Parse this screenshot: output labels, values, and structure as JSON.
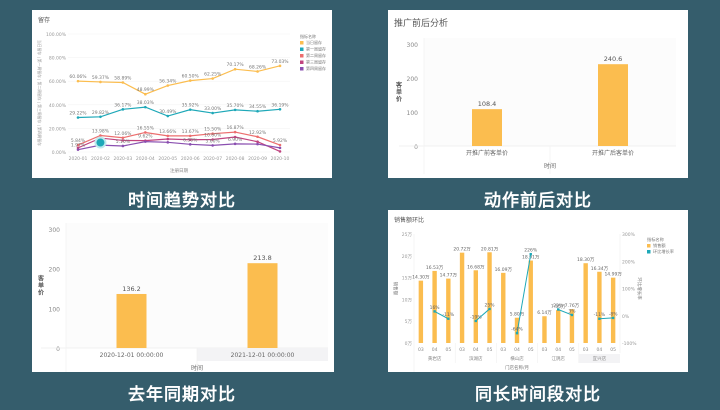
{
  "captions": {
    "top_left": "时间趋势对比",
    "top_right": "动作前后对比",
    "bottom_left": "去年同期对比",
    "bottom_right": "同长时间段对比"
  },
  "colors": {
    "background": "#355d6c",
    "orange": "#fbbd4f",
    "teal": "#1ea8b8",
    "red": "#ec6e6e",
    "magenta": "#c0437f",
    "purple": "#8a4fb0"
  },
  "chart_data": [
    {
      "type": "line",
      "title": "留存",
      "xlabel": "注册日期",
      "ylabel": "当日留存 | 第一周留存 | 第二周留存 | 第三周留存 | 第四周留存",
      "ylim": [
        0,
        100
      ],
      "yticks": [
        "0.00%",
        "20.00%",
        "40.00%",
        "60.00%",
        "80.00%",
        "100.00%"
      ],
      "legend_title": "指标名称",
      "legend_position": "right",
      "categories": [
        "2020-01",
        "2020-02",
        "2020-03",
        "2020-04",
        "2020-05",
        "2020-06",
        "2020-07",
        "2020-08",
        "2020-09",
        "2020-10"
      ],
      "series": [
        {
          "name": "当日留存",
          "color": "#fbbd4f",
          "values": [
            60.06,
            59.37,
            58.89,
            48.99,
            56.34,
            60.5,
            62.25,
            70.17,
            68.26,
            73.03
          ],
          "labels": [
            "60.06%",
            "59.37%",
            "58.89%",
            "48.99%",
            "56.34%",
            "60.50%",
            "62.25%",
            "70.17%",
            "68.26%",
            "73.03%"
          ]
        },
        {
          "name": "第一周留存",
          "color": "#1ea8b8",
          "values": [
            29.22,
            29.82,
            36.17,
            38.03,
            30.49,
            35.92,
            33.0,
            35.7,
            34.55,
            36.19
          ],
          "labels": [
            "29.22%",
            "29.82%",
            "36.17%",
            "38.03%",
            "30.49%",
            "35.92%",
            "33.00%",
            "35.70%",
            "34.55%",
            "36.19%"
          ]
        },
        {
          "name": "第二周留存",
          "color": "#ec6e6e",
          "values": [
            5.84,
            13.98,
            12.06,
            16.55,
            13.66,
            13.67,
            15.5,
            16.87,
            12.92,
            5.92
          ],
          "labels": [
            "5.84%",
            "13.98%",
            "12.06%",
            "16.55%",
            "13.66%",
            "13.67%",
            "15.50%",
            "16.87%",
            "12.92%",
            "5.92%"
          ]
        },
        {
          "name": "第三周留存",
          "color": "#c0437f",
          "values": [
            3.5,
            11.8,
            9.8,
            9.62,
            11.0,
            10.4,
            10.6,
            12.7,
            8.7,
            0.5
          ],
          "labels": [
            "",
            "",
            "",
            "9.62%",
            "",
            "",
            "10.60%",
            "",
            "",
            ""
          ]
        },
        {
          "name": "第四周留存",
          "color": "#8a4fb0",
          "values": [
            1.97,
            5.8,
            5.1,
            8.8,
            8.2,
            6.5,
            5.6,
            6.9,
            6.7,
            3.5
          ],
          "labels": [
            "1.97%",
            "",
            "5.10%",
            "",
            "",
            "6.50%",
            "5.60%",
            "6.90%",
            "",
            ""
          ]
        }
      ]
    },
    {
      "type": "bar",
      "title": "推广前后分析",
      "xlabel": "时间",
      "ylabel": "客单价",
      "ylim": [
        0,
        300
      ],
      "yticks": [
        0,
        100,
        200,
        300
      ],
      "categories": [
        "开推广前客单价",
        "开推广后客单价"
      ],
      "values": [
        108.4,
        240.6
      ],
      "color": "#fbbd4f"
    },
    {
      "type": "bar",
      "title": "",
      "xlabel": "时间",
      "ylabel": "客单价",
      "ylim": [
        0,
        300
      ],
      "yticks": [
        0,
        100,
        200,
        300
      ],
      "categories": [
        "2020-12-01 00:00:00",
        "2021-12-01 00:00:00"
      ],
      "values": [
        136.2,
        213.8
      ],
      "color": "#fbbd4f"
    },
    {
      "type": "bar",
      "title": "销售额环比",
      "xlabel": "门店名称/月",
      "ylabel": "销售额",
      "y2label": "环比增长率",
      "ylim": [
        0,
        25
      ],
      "yticks": [
        "0万",
        "5万",
        "10万",
        "15万",
        "20万",
        "25万"
      ],
      "y2lim": [
        -100,
        300
      ],
      "y2ticks": [
        "-100%",
        "0%",
        "100%",
        "200%",
        "300%"
      ],
      "legend_title": "指标名称",
      "legend": [
        "销售额",
        "环比增长率"
      ],
      "groups": [
        "黄岩店",
        "滨湖店",
        "横山店",
        "江阴店",
        "宜兴店"
      ],
      "months": [
        "03",
        "04",
        "05"
      ],
      "series": [
        {
          "name": "销售额",
          "type": "bar",
          "color": "#fbbd4f",
          "values": [
            14.3,
            16.53,
            14.77,
            20.72,
            16.68,
            20.81,
            16.09,
            5.8,
            18.91,
            6.14,
            7.55,
            7.76,
            18.3,
            16.34,
            14.99
          ],
          "labels": [
            "14.30万",
            "16.53万",
            "14.77万",
            "20.72万",
            "16.68万",
            "20.81万",
            "16.09万",
            "5.80万",
            "18.91万",
            "6.14万",
            "7.55万",
            "7.76万",
            "18.30万",
            "16.34万",
            "14.99万"
          ]
        },
        {
          "name": "环比增长率",
          "type": "line",
          "color": "#1ea8b8",
          "values": [
            null,
            16,
            -11,
            null,
            -19,
            25,
            null,
            -64,
            226,
            null,
            23,
            3,
            null,
            -11,
            -8
          ],
          "labels": [
            "",
            "16%",
            "-11%",
            "",
            "-19%",
            "25%",
            "",
            "-64%",
            "226%",
            "",
            "23%",
            "3%",
            "",
            "-11%",
            "-8%"
          ]
        }
      ]
    }
  ]
}
